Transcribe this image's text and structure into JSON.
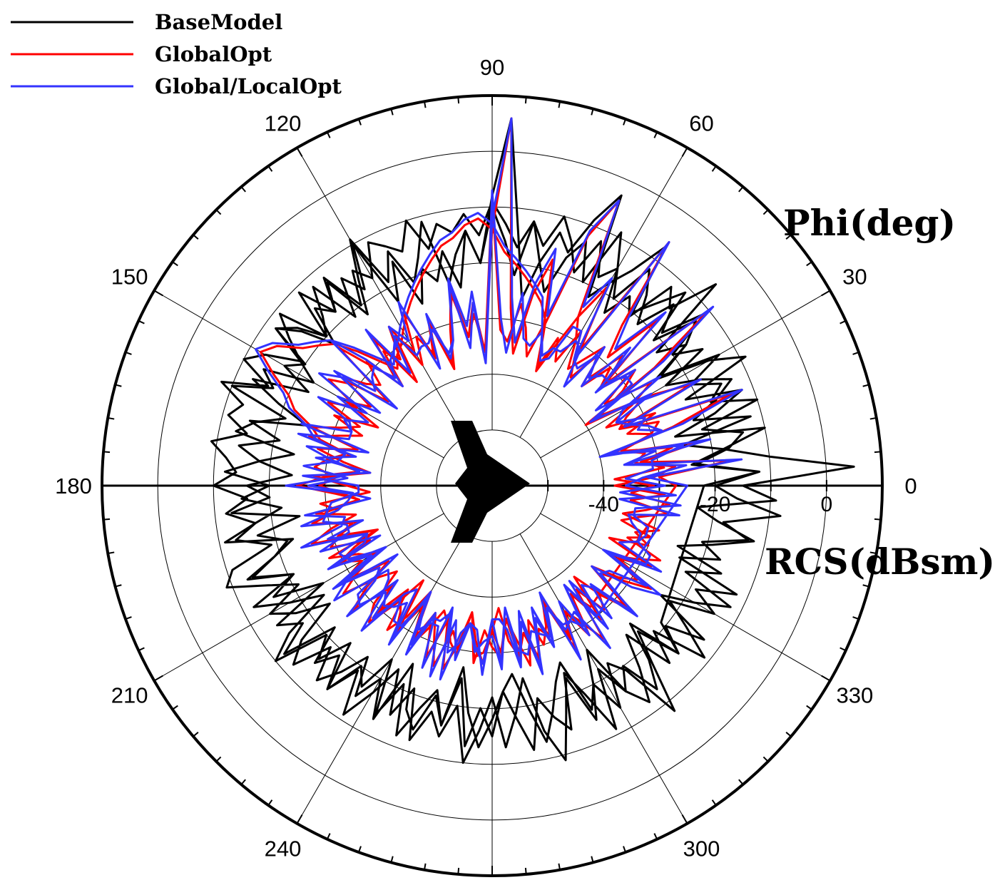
{
  "legend": [
    {
      "label": "BaseModel",
      "color": "#000000"
    },
    {
      "label": "GlobalOpt",
      "color": "#ff0000"
    },
    {
      "label": "Global/LocalOpt",
      "color": "#3333ff"
    }
  ],
  "chart_data": {
    "type": "polar-line",
    "theta_label": "Phi(deg)",
    "r_label": "RCS(dBsm)",
    "theta_ticks": [
      0,
      30,
      60,
      90,
      120,
      150,
      180,
      210,
      240,
      300,
      330
    ],
    "r_ticks": [
      -40,
      -20,
      0
    ],
    "r_range": [
      -60,
      10
    ],
    "angle_step_deg": 3,
    "series": [
      {
        "name": "BaseModel",
        "color": "#000000",
        "values": [
          -22,
          -12,
          -24,
          -18,
          -10,
          -26,
          -18,
          -12,
          -22,
          -9,
          -15,
          -25,
          -17,
          -13,
          -21,
          -11,
          -16,
          -20,
          -7,
          -14,
          -18,
          -22,
          -3,
          -9,
          -16,
          -13,
          -19,
          -26,
          -15,
          6,
          -8,
          -20,
          -14,
          -24,
          -17,
          -22,
          -19,
          -25,
          -16,
          -23,
          -10,
          -18,
          -14,
          -21,
          -12,
          -17,
          -20,
          -11,
          -15,
          -19,
          -13,
          -10,
          -16,
          -8,
          -13,
          -11,
          -15,
          -9,
          -12,
          -14,
          -10,
          -16,
          -12,
          -17,
          -13,
          -19,
          -11,
          -9,
          -16,
          -21,
          -14,
          -18,
          -24,
          -16,
          -12,
          -19,
          -13,
          -17,
          -22,
          -15,
          -20,
          -13,
          -25,
          -17,
          -14,
          -21,
          -16,
          -27,
          -19,
          -13,
          -18,
          -23,
          -26,
          -20,
          -13,
          -18,
          -23,
          -26,
          -16,
          -20,
          -14,
          -22,
          -19,
          -8,
          -17,
          -23,
          -15,
          -20,
          -13,
          -24,
          -18,
          -12,
          -22,
          -16,
          -25,
          -19,
          -12,
          -19,
          -23,
          -9,
          -15,
          5,
          -10,
          -18,
          -25,
          -12,
          -22,
          -17,
          -13,
          -18,
          -24,
          -15,
          -20,
          -11,
          -19,
          -14,
          -21,
          -16,
          -12,
          -20,
          -15,
          -18,
          -12,
          -19,
          -14,
          -10,
          -16,
          -12,
          -17,
          -13,
          -9,
          -15,
          -11,
          -14,
          -12,
          -16,
          -10,
          -15,
          -13,
          -11,
          -17,
          -14,
          -20,
          -12,
          -18,
          -15,
          -22,
          -16,
          -12,
          -20,
          -17,
          -23,
          -13,
          -19,
          -25,
          -15,
          -21,
          -14,
          -18,
          -24,
          -16,
          -20,
          -13,
          -25,
          -17,
          -22,
          -19,
          -14,
          -21,
          -12,
          -18,
          -24,
          -15,
          -10,
          -20,
          -16,
          -22,
          -13,
          -19,
          -11,
          -17,
          -23,
          -15,
          -21,
          -12,
          -18,
          -14,
          -20,
          -10,
          -16,
          -22,
          -13,
          -19,
          -25,
          -15,
          -9,
          -17,
          -23,
          -14,
          -20,
          -26,
          -16,
          -12,
          -18,
          -24,
          -15,
          -21,
          -11,
          -17,
          -22,
          -14,
          -19,
          -12,
          -24,
          -17,
          -21,
          -13,
          -18,
          -8,
          -16,
          -20,
          -12,
          -23,
          -17,
          -14,
          -21,
          -10,
          -18,
          -15,
          -20,
          -13,
          -24,
          -17,
          -22,
          -6,
          -15,
          -12,
          -21,
          -18,
          -23,
          -15,
          -9,
          -20,
          -13,
          -17,
          -24,
          -19,
          -12,
          -22,
          -16,
          -10,
          -20,
          -14,
          -18,
          -23,
          -11,
          -17,
          -21,
          -14,
          -19,
          -9,
          -16,
          -22,
          -13,
          -18,
          -11,
          -20,
          -15,
          -12,
          -19,
          -23,
          -14,
          -17,
          -10,
          -21,
          -16,
          -13,
          -24,
          -18,
          -12,
          -20,
          -15,
          -22,
          -17,
          -11,
          -23,
          -19,
          -13,
          -21,
          -16,
          -25,
          -14,
          -18,
          -12,
          -22,
          -15,
          -19,
          -13,
          -20,
          -17,
          -24,
          -14,
          -21,
          -12,
          -18,
          -22,
          -16,
          -25,
          -13,
          -20,
          -15,
          -23,
          -18,
          -12,
          -21,
          -17,
          -14,
          -24,
          -19,
          -11,
          -22,
          -16,
          -20,
          -13,
          -18,
          -25,
          -15,
          -21
        ]
      },
      {
        "name": "GlobalOpt",
        "color": "#ff0000",
        "values": [
          -27,
          -30,
          -17,
          -33,
          -22,
          -38,
          -26,
          -14,
          -35,
          -20,
          -28,
          -40,
          -24,
          -10,
          -33,
          -18,
          -29,
          -23,
          -6,
          -31,
          -19,
          -26,
          -4,
          -12,
          -30,
          -18,
          -25,
          -36,
          -28,
          6,
          -14,
          -36,
          -27,
          -33,
          -24,
          -31,
          -38,
          -29,
          -35,
          -25,
          -32,
          -28,
          -37,
          -26,
          -34,
          -30,
          -23,
          -36,
          -29,
          -25,
          -32,
          -27,
          -34,
          -31,
          -26,
          -35,
          -28,
          -33,
          -38,
          -30,
          -25,
          -32,
          -36,
          -28,
          -35,
          -30,
          -26,
          -38,
          -33,
          -29,
          -36,
          -31,
          -27,
          -34,
          -37,
          -30,
          -27,
          -33,
          -39,
          -29,
          -35,
          -28,
          -32,
          -36,
          -34,
          -26,
          -31,
          -37,
          -29,
          -30,
          -34,
          -38,
          -32,
          -29,
          -35,
          -28,
          -33,
          -31,
          -37,
          -27,
          -34,
          -30,
          -36,
          -29,
          -38,
          -32,
          -27,
          -35,
          -31,
          -26,
          -34,
          -28,
          -37,
          -30,
          -33,
          -29,
          -36,
          -32,
          -28,
          -35,
          -31,
          -38,
          -29,
          -33,
          -27,
          -36,
          -30,
          -34,
          -28,
          -37,
          -31,
          -26,
          -35,
          -29,
          -32,
          -27,
          -34,
          -30,
          -36,
          -33,
          -28,
          -35,
          -31,
          -37,
          -29,
          -26,
          -24,
          -22,
          -20,
          -18,
          -14,
          -12,
          -13,
          -15,
          -16,
          -18,
          -20,
          -22,
          -24,
          -26,
          -28,
          -30,
          -31,
          -33,
          -30,
          -26,
          -22,
          -20,
          -18,
          -14,
          -12,
          -16,
          -20,
          -22,
          -26,
          -28,
          -34,
          -30,
          -28,
          -32,
          -29,
          -33,
          -36,
          -30,
          -27,
          -34,
          -31,
          -38,
          -28,
          -33,
          -35,
          -29,
          -37,
          -31,
          -27,
          -34,
          -30,
          -36,
          -28,
          -32,
          -38,
          -29,
          -35,
          -31,
          -26,
          -33,
          -30,
          -37,
          -28,
          -34,
          -31,
          -29,
          -36,
          -32,
          -27,
          -35,
          -30,
          -33,
          -38,
          -29,
          -34,
          -31,
          -26,
          -36,
          -30,
          -33,
          -28,
          -37,
          -32,
          -29,
          -35,
          -31,
          -27,
          -34,
          -30,
          -36,
          -33,
          -28,
          -35,
          -29,
          -38,
          -31,
          -27,
          -34,
          -32,
          -36,
          -30,
          -28,
          -35,
          -33,
          -29,
          -37,
          -31,
          -27,
          -34,
          -30,
          -36,
          -28,
          -32,
          -35,
          -30,
          -26,
          -33,
          -38,
          -29,
          -36,
          -31,
          -27,
          -34,
          -32,
          -8,
          -36,
          -29,
          -33,
          -25,
          -31,
          -37,
          -28,
          -34,
          -30,
          -35,
          -26,
          -32,
          -29,
          -36,
          -28,
          -33,
          -31,
          -27,
          -34,
          -30,
          -37,
          -29,
          -35,
          -31,
          -26,
          -33,
          -30,
          -36,
          -28,
          -34,
          -38,
          -29,
          -32,
          -27,
          -35,
          -31,
          -29,
          -36,
          -30,
          -33,
          -28,
          -37,
          -31,
          -26,
          -35,
          -29,
          -34,
          -32,
          -28,
          -36,
          -30,
          -33,
          -27,
          -35,
          -31,
          -29,
          -37,
          -32,
          -28,
          -34,
          -30,
          -36,
          -29,
          -33,
          -27,
          -35,
          -31,
          -38,
          -30,
          -34,
          -28,
          -36,
          -32
        ]
      },
      {
        "name": "Global/LocalOpt",
        "color": "#3333ff",
        "values": [
          -25,
          -32,
          -15,
          -36,
          -20,
          -40,
          -24,
          -12,
          -34,
          -18,
          -30,
          -38,
          -22,
          -9,
          -35,
          -16,
          -27,
          -21,
          -6,
          -33,
          -17,
          -24,
          -4,
          -11,
          -28,
          -16,
          -23,
          -34,
          -26,
          6,
          -12,
          -38,
          -25,
          -31,
          -22,
          -33,
          -36,
          -27,
          -37,
          -23,
          -30,
          -26,
          -35,
          -24,
          -36,
          -28,
          -21,
          -38,
          -27,
          -23,
          -34,
          -25,
          -32,
          -33,
          -24,
          -37,
          -26,
          -31,
          -36,
          -32,
          -23,
          -34,
          -38,
          -26,
          -33,
          -32,
          -24,
          -36,
          -35,
          -27,
          -38,
          -29,
          -25,
          -36,
          -35,
          -32,
          -25,
          -35,
          -37,
          -27,
          -37,
          -26,
          -34,
          -34,
          -36,
          -24,
          -33,
          -35,
          -31,
          -28,
          -36,
          -36,
          -34,
          -27,
          -37,
          -26,
          -35,
          -29,
          -39,
          -25,
          -36,
          -28,
          -38,
          -27,
          -36,
          -34,
          -25,
          -37,
          -29,
          -24,
          -36,
          -26,
          -35,
          -32,
          -31,
          -31,
          -34,
          -34,
          -26,
          -37,
          -29,
          -36,
          -31,
          -31,
          -25,
          -38,
          -28,
          -32,
          -30,
          -35,
          -33,
          -24,
          -37,
          -27,
          -34,
          -25,
          -36,
          -28,
          -38,
          -31,
          -30,
          -33,
          -33,
          -35,
          -31,
          -25,
          -23,
          -21,
          -19,
          -17,
          -13,
          -11,
          -12,
          -14,
          -15,
          -17,
          -19,
          -21,
          -23,
          -25,
          -27,
          -29,
          -30,
          -32,
          -29,
          -25,
          -21,
          -19,
          -17,
          -13,
          -11,
          -15,
          -19,
          -21,
          -25,
          -27,
          -33,
          -32,
          -26,
          -34,
          -27,
          -35,
          -34,
          -32,
          -25,
          -36,
          -29,
          -36,
          -30,
          -31,
          -37,
          -27,
          -35,
          -33,
          -25,
          -36,
          -28,
          -34,
          -30,
          -30,
          -36,
          -31,
          -33,
          -33,
          -24,
          -35,
          -28,
          -35,
          -30,
          -32,
          -33,
          -27,
          -38,
          -30,
          -29,
          -33,
          -32,
          -31,
          -36,
          -31,
          -32,
          -33,
          -24,
          -38,
          -28,
          -35,
          -26,
          -35,
          -34,
          -27,
          -37,
          -29,
          -29,
          -32,
          -32,
          -34,
          -35,
          -26,
          -37,
          -27,
          -36,
          -33,
          -25,
          -36,
          -30,
          -38,
          -28,
          -30,
          -33,
          -35,
          -27,
          -39,
          -29,
          -29,
          -32,
          -32,
          -34,
          -30,
          -34,
          -33,
          -28,
          -28,
          -35,
          -36,
          -31,
          -34,
          -33,
          -25,
          -36,
          -30,
          -7,
          -38,
          -27,
          -35,
          -23,
          -33,
          -35,
          -30,
          -32,
          -32,
          -33,
          -28,
          -30,
          -31,
          -34,
          -30,
          -31,
          -33,
          -25,
          -36,
          -28,
          -35,
          -31,
          -33,
          -33,
          -24,
          -35,
          -28,
          -38,
          -26,
          -36,
          -36,
          -31,
          -30,
          -29,
          -33,
          -33,
          -27,
          -38,
          -28,
          -35,
          -26,
          -39,
          -29,
          -28,
          -33,
          -31,
          -32,
          -34,
          -26,
          -38,
          -28,
          -35,
          -25,
          -37,
          -29,
          -31,
          -35,
          -34,
          -26,
          -36,
          -28,
          -38,
          -27,
          -35,
          -25,
          -37,
          -29,
          -36,
          -32,
          -32,
          -30,
          -38,
          -30
        ]
      }
    ]
  }
}
